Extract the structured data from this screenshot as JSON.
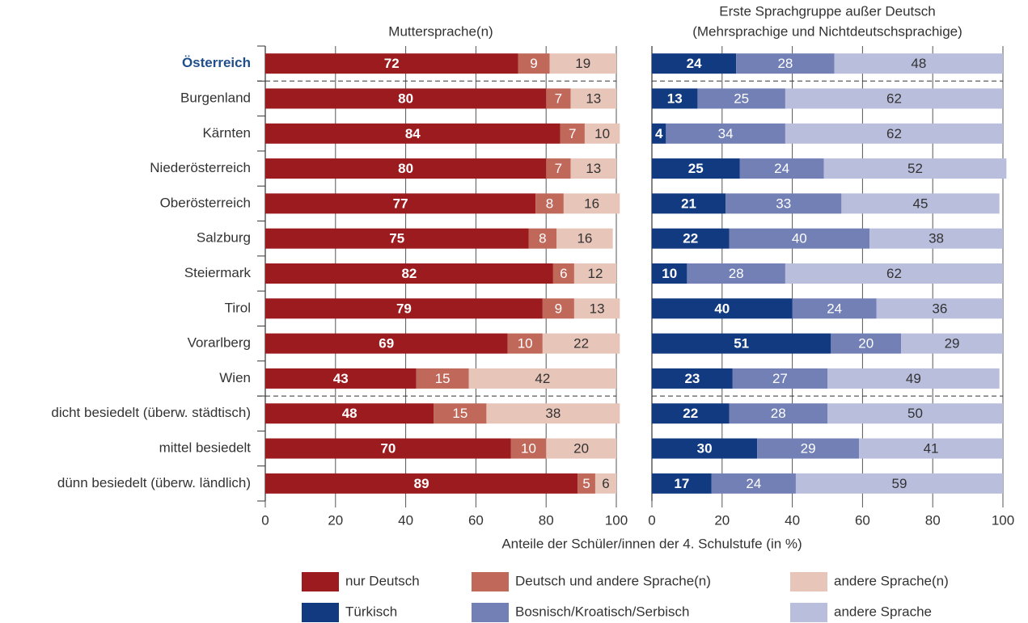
{
  "chart_data": [
    {
      "type": "bar",
      "orientation": "horizontal",
      "stacked": true,
      "title": "Muttersprache(n)",
      "xlabel": "Anteile der Schüler/innen der 4. Schulstufe (in %)",
      "categories": [
        "Österreich",
        "Burgenland",
        "Kärnten",
        "Niederösterreich",
        "Oberösterreich",
        "Salzburg",
        "Steiermark",
        "Tirol",
        "Vorarlberg",
        "Wien",
        "dicht besiedelt (überw. städtisch)",
        "mittel besiedelt",
        "dünn besiedelt (überw. ländlich)"
      ],
      "series": [
        {
          "name": "nur Deutsch",
          "color": "#9b1b1f",
          "values": [
            72,
            80,
            84,
            80,
            77,
            75,
            82,
            79,
            69,
            43,
            48,
            70,
            89
          ]
        },
        {
          "name": "Deutsch und andere Sprache(n)",
          "color": "#c0695a",
          "values": [
            9,
            7,
            7,
            7,
            8,
            8,
            6,
            9,
            10,
            15,
            15,
            10,
            5
          ]
        },
        {
          "name": "andere Sprache(n)",
          "color": "#e8c5b9",
          "values": [
            19,
            13,
            10,
            13,
            16,
            16,
            12,
            13,
            22,
            42,
            38,
            20,
            6
          ]
        }
      ],
      "xlim": [
        0,
        100
      ],
      "xticks": [
        0,
        20,
        40,
        60,
        80,
        100
      ],
      "grid": true
    },
    {
      "type": "bar",
      "orientation": "horizontal",
      "stacked": true,
      "title": "Erste Sprachgruppe außer Deutsch",
      "subtitle": "(Mehrsprachige und Nichtdeutschsprachige)",
      "series": [
        {
          "name": "Türkisch",
          "color": "#113a80",
          "values": [
            24,
            13,
            4,
            25,
            21,
            22,
            10,
            40,
            51,
            23,
            22,
            30,
            17
          ]
        },
        {
          "name": "Bosnisch/Kroatisch/Serbisch",
          "color": "#7280b6",
          "values": [
            28,
            25,
            34,
            24,
            33,
            40,
            28,
            24,
            20,
            27,
            28,
            29,
            24
          ]
        },
        {
          "name": "andere Sprache",
          "color": "#b9bedd",
          "values": [
            48,
            62,
            62,
            52,
            45,
            38,
            62,
            36,
            29,
            49,
            50,
            41,
            59
          ]
        }
      ],
      "xlim": [
        0,
        100
      ],
      "xticks": [
        0,
        20,
        40,
        60,
        80,
        100
      ],
      "grid": true
    }
  ]
}
